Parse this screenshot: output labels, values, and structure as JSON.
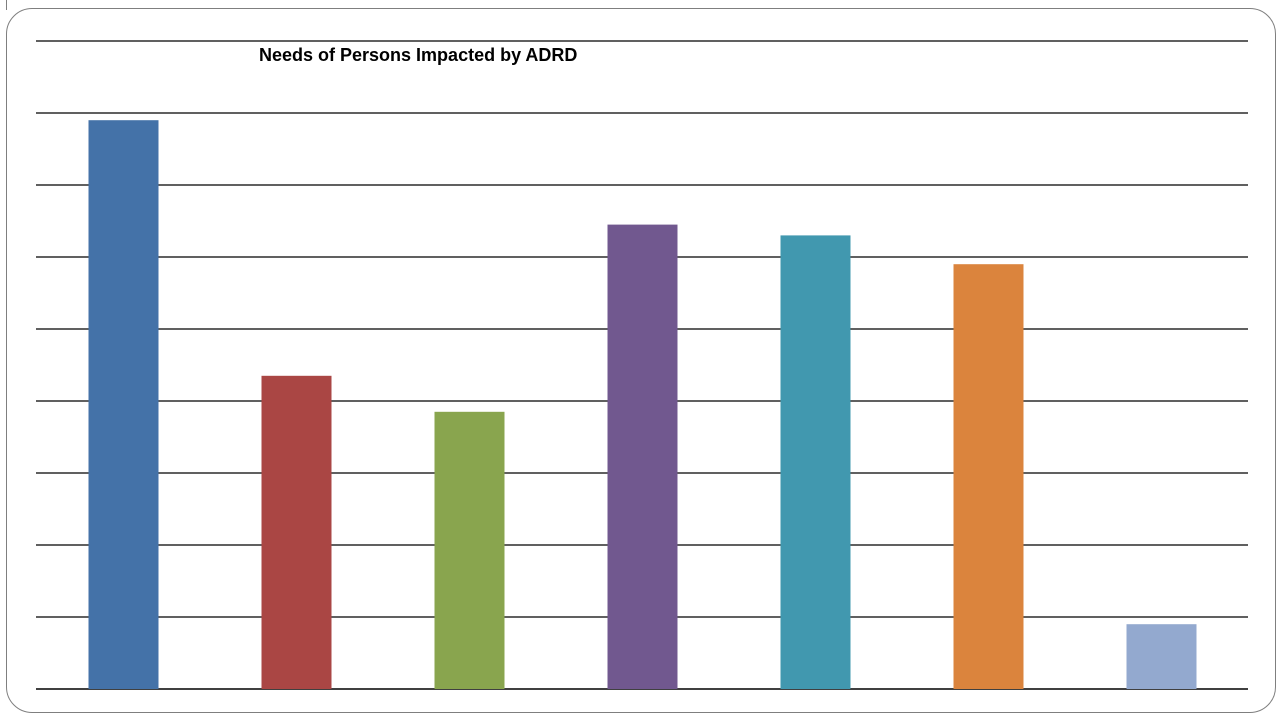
{
  "chart_data": {
    "type": "bar",
    "title": "Needs of Persons Impacted by ADRD",
    "xlabel": "",
    "ylabel": "",
    "ylim": [
      0,
      9
    ],
    "grid": true,
    "legend": "none",
    "categories": [
      "",
      "",
      "",
      "",
      "",
      "",
      ""
    ],
    "values": [
      7.9,
      4.35,
      3.85,
      6.45,
      6.3,
      5.9,
      0.9
    ],
    "colors": [
      "#4472a8",
      "#aa4644",
      "#89a54e",
      "#71588f",
      "#4198af",
      "#db843d",
      "#93a9cf"
    ]
  }
}
